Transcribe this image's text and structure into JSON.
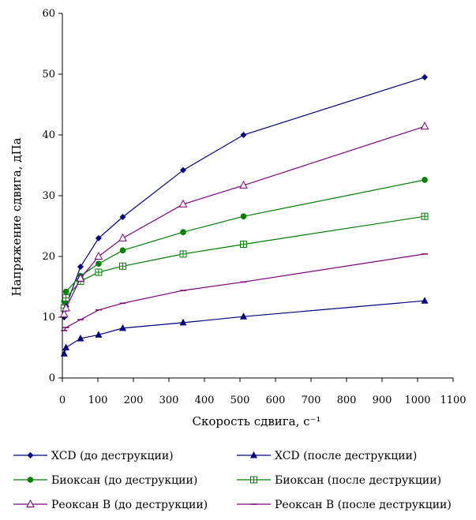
{
  "chart_data": {
    "type": "line",
    "xlabel": "Скорость сдвига, с⁻¹",
    "ylabel": "Напряжение сдвига, дПа",
    "xlim": [
      0,
      1100
    ],
    "ylim": [
      0,
      60
    ],
    "xticks": [
      "0",
      "100",
      "200",
      "300",
      "400",
      "500",
      "600",
      "700",
      "800",
      "900",
      "1000",
      "1100"
    ],
    "yticks": [
      "0",
      "10",
      "20",
      "30",
      "40",
      "50",
      "60"
    ],
    "grid": false,
    "legend_position": "bottom",
    "series": [
      {
        "name": "XCD (до деструкции)",
        "color": "#000080",
        "marker": "diamond",
        "x": [
          5.1,
          10.2,
          51,
          102,
          170,
          340,
          510,
          1020
        ],
        "y": [
          10.0,
          11.8,
          18.3,
          23.0,
          26.5,
          34.2,
          40.0,
          49.5
        ]
      },
      {
        "name": "XCD (после деструкции)",
        "color": "#000080",
        "marker": "triangle",
        "x": [
          5.1,
          10.2,
          51,
          102,
          170,
          340,
          510,
          1020
        ],
        "y": [
          4.0,
          5.0,
          6.5,
          7.1,
          8.2,
          9.1,
          10.1,
          12.7
        ]
      },
      {
        "name": "Биоксан (до деструкции)",
        "color": "#008000",
        "marker": "circle",
        "x": [
          5.1,
          10.2,
          51,
          102,
          170,
          340,
          510,
          1020
        ],
        "y": [
          12.6,
          14.2,
          16.8,
          18.8,
          21.0,
          24.0,
          26.6,
          32.6
        ]
      },
      {
        "name": "Биоксан (после деструкции)",
        "color": "#008000",
        "marker": "square-cross",
        "x": [
          5.1,
          10.2,
          51,
          102,
          170,
          340,
          510,
          1020
        ],
        "y": [
          11.5,
          13.2,
          15.9,
          17.4,
          18.4,
          20.4,
          22.0,
          26.6
        ]
      },
      {
        "name": "Реоксан В (до деструкции)",
        "color": "#800080",
        "marker": "triangle-open",
        "x": [
          5.1,
          10.2,
          51,
          102,
          170,
          340,
          510,
          1020
        ],
        "y": [
          10.5,
          11.5,
          16.4,
          20.0,
          23.0,
          28.6,
          31.7,
          41.4
        ]
      },
      {
        "name": "Реоксан В (после деструкции)",
        "color": "#800080",
        "marker": "dash",
        "x": [
          5.1,
          10.2,
          51,
          102,
          170,
          340,
          510,
          1020
        ],
        "y": [
          7.8,
          8.3,
          9.6,
          11.2,
          12.3,
          14.4,
          15.8,
          20.4
        ]
      }
    ]
  }
}
